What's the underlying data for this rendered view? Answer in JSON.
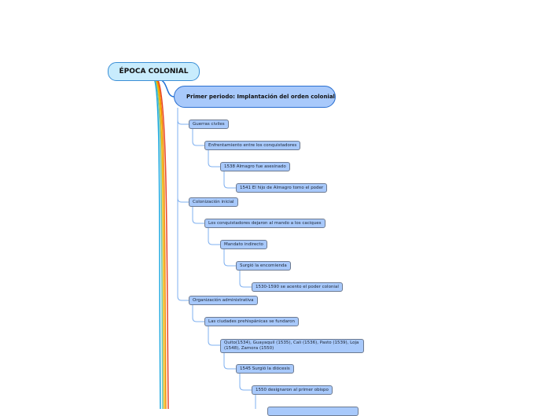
{
  "root": {
    "label": "ÉPOCA COLONIAL"
  },
  "main_topic": {
    "label": "Primer periodo: Implantación del orden colonial"
  },
  "nodes": [
    "Guerras civiles",
    "Enfrentamiento entre los conquistadores",
    "1538 Almagro fue asesinado",
    "1541 El hijo de Almagro tomo el poder",
    "Colonización inicial",
    "Los conquistadores dejaron al mando a los caciques",
    "Mandato indirecto",
    "Surgió la encomienda",
    "1530-1590 se acento el poder colonial",
    "Organización administrativa",
    "Las ciudades prehispánicas se fundaron",
    "Quito(1534), Guayaquil (1535), Cali (1536), Pasto (1539), Loja (1548), Zamora (1550)",
    "1545 Surgió la diócesis",
    "1550 designaron al primer obispo",
    ""
  ],
  "colors": {
    "branch_lines": [
      "#1aa7e0",
      "#f5b800",
      "#f08a00",
      "#e8452a",
      "#6fc3a0"
    ],
    "node_fill": "#a8c9fb",
    "root_fill": "#c8ecfd"
  }
}
